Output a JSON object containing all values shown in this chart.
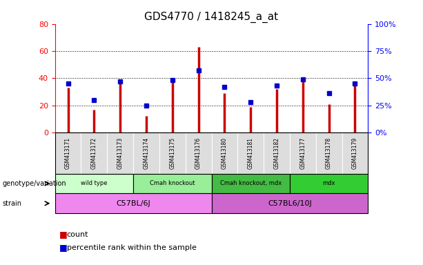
{
  "title": "GDS4770 / 1418245_a_at",
  "samples": [
    "GSM413171",
    "GSM413172",
    "GSM413173",
    "GSM413174",
    "GSM413175",
    "GSM413176",
    "GSM413180",
    "GSM413181",
    "GSM413182",
    "GSM413177",
    "GSM413178",
    "GSM413179"
  ],
  "counts": [
    33,
    17,
    38,
    12,
    37,
    63,
    29,
    19,
    32,
    38,
    21,
    35
  ],
  "percentiles": [
    45,
    30,
    47,
    25,
    48,
    57,
    42,
    28,
    43,
    49,
    36,
    45
  ],
  "ylim_left": [
    0,
    80
  ],
  "ylim_right": [
    0,
    100
  ],
  "yticks_left": [
    0,
    20,
    40,
    60,
    80
  ],
  "yticks_right": [
    0,
    25,
    50,
    75,
    100
  ],
  "ytick_labels_right": [
    "0%",
    "25%",
    "50%",
    "75%",
    "100%"
  ],
  "bar_color": "#CC0000",
  "dot_color": "#0000CC",
  "groups": [
    {
      "label": "wild type",
      "start": 0,
      "end": 3,
      "color": "#CCFFCC"
    },
    {
      "label": "Cmah knockout",
      "start": 3,
      "end": 6,
      "color": "#99EE99"
    },
    {
      "label": "Cmah knockout, mdx",
      "start": 6,
      "end": 9,
      "color": "#44BB44"
    },
    {
      "label": "mdx",
      "start": 9,
      "end": 12,
      "color": "#33CC33"
    }
  ],
  "strains": [
    {
      "label": "C57BL/6J",
      "start": 0,
      "end": 6,
      "color": "#EE88EE"
    },
    {
      "label": "C57BL6/10J",
      "start": 6,
      "end": 12,
      "color": "#CC66CC"
    }
  ],
  "legend_count_label": "count",
  "legend_pct_label": "percentile rank within the sample",
  "genotype_label": "genotype/variation",
  "strain_label": "strain",
  "sample_col_bg": "#DDDDDD"
}
